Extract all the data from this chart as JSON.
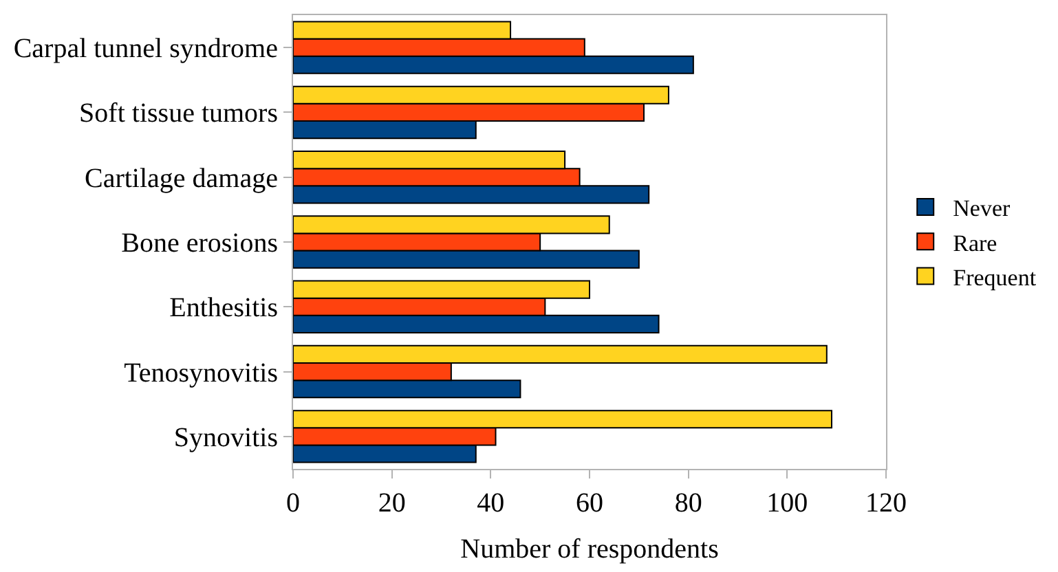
{
  "chart_data": {
    "type": "bar",
    "orientation": "horizontal",
    "xlabel": "Number of respondents",
    "categories": [
      "Carpal tunnel syndrome",
      "Soft tissue tumors",
      "Cartilage damage",
      "Bone erosions",
      "Enthesitis",
      "Tenosynovitis",
      "Synovitis"
    ],
    "series": [
      {
        "name": "Never",
        "color": "#004586",
        "values": [
          81,
          37,
          72,
          70,
          74,
          46,
          37
        ]
      },
      {
        "name": "Rare",
        "color": "#ff420e",
        "values": [
          59,
          71,
          58,
          50,
          51,
          32,
          41
        ]
      },
      {
        "name": "Frequent",
        "color": "#ffd320",
        "values": [
          44,
          76,
          55,
          64,
          60,
          108,
          109
        ]
      }
    ],
    "xlim": [
      0,
      120
    ],
    "xticks": [
      0,
      20,
      40,
      60,
      80,
      100,
      120
    ],
    "legend": "right"
  }
}
